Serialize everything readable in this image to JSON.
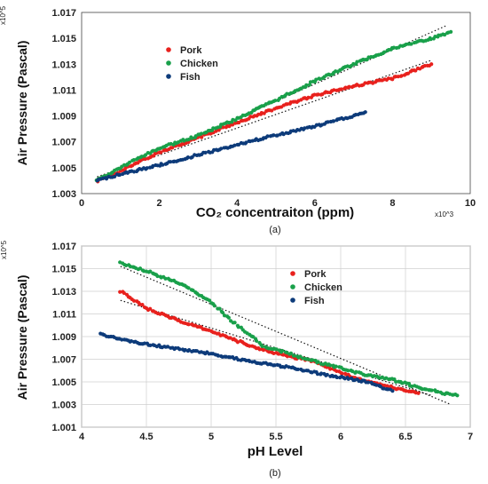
{
  "chart_data": [
    {
      "type": "scatter",
      "caption": "(a)",
      "xlabel": "CO₂ concentraiton (ppm)",
      "ylabel": "Air Pressure (Pascal)",
      "x_multiplier": "x10^3",
      "y_multiplier": "x10^5",
      "xlim": [
        0,
        10
      ],
      "ylim": [
        1.003,
        1.017
      ],
      "x_ticks": [
        "0",
        "2",
        "4",
        "6",
        "8",
        "10"
      ],
      "y_ticks": [
        "1.003",
        "1.005",
        "1.007",
        "1.009",
        "1.011",
        "1.013",
        "1.015",
        "1.017"
      ],
      "grid": false,
      "legend": "upper-left inside",
      "series": [
        {
          "name": "Pork",
          "color": "#e8211d",
          "points": [
            [
              0.4,
              1.004
            ],
            [
              1,
              1.0047
            ],
            [
              1.5,
              1.0055
            ],
            [
              2,
              1.0062
            ],
            [
              3,
              1.0073
            ],
            [
              4,
              1.0085
            ],
            [
              5,
              1.0096
            ],
            [
              6,
              1.0106
            ],
            [
              7,
              1.0113
            ],
            [
              8,
              1.0119
            ],
            [
              9,
              1.013
            ]
          ]
        },
        {
          "name": "Chicken",
          "color": "#19a04a",
          "points": [
            [
              0.4,
              1.004
            ],
            [
              1,
              1.005
            ],
            [
              1.5,
              1.0058
            ],
            [
              2,
              1.0065
            ],
            [
              3,
              1.0075
            ],
            [
              4,
              1.0088
            ],
            [
              5,
              1.0102
            ],
            [
              6,
              1.0117
            ],
            [
              7,
              1.013
            ],
            [
              8,
              1.0142
            ],
            [
              9,
              1.015
            ],
            [
              9.5,
              1.0155
            ]
          ]
        },
        {
          "name": "Fish",
          "color": "#0d3b7a",
          "points": [
            [
              0.4,
              1.004
            ],
            [
              1,
              1.0045
            ],
            [
              2,
              1.0052
            ],
            [
              3,
              1.006
            ],
            [
              4,
              1.0068
            ],
            [
              5,
              1.0075
            ],
            [
              6,
              1.0082
            ],
            [
              7,
              1.009
            ],
            [
              7.3,
              1.0093
            ]
          ]
        }
      ],
      "trendlines": [
        {
          "from": [
            0.4,
            1.004
          ],
          "to": [
            9.4,
            1.016
          ]
        },
        {
          "from": [
            0.4,
            1.0043
          ],
          "to": [
            9.0,
            1.0133
          ]
        }
      ]
    },
    {
      "type": "scatter",
      "caption": "(b)",
      "xlabel": "pH Level",
      "ylabel": "Air Pressure (Pascal)",
      "y_multiplier": "x10^5",
      "xlim": [
        4,
        7
      ],
      "ylim": [
        1.001,
        1.017
      ],
      "x_ticks": [
        "4",
        "4.5",
        "5",
        "5.5",
        "6",
        "6.5",
        "7"
      ],
      "y_ticks": [
        "1.001",
        "1.003",
        "1.005",
        "1.007",
        "1.009",
        "1.011",
        "1.013",
        "1.015",
        "1.017"
      ],
      "grid": true,
      "legend": "upper-right inside",
      "series": [
        {
          "name": "Pork",
          "color": "#e8211d",
          "points": [
            [
              4.3,
              1.013
            ],
            [
              4.5,
              1.0115
            ],
            [
              4.8,
              1.0102
            ],
            [
              5,
              1.0095
            ],
            [
              5.3,
              1.0082
            ],
            [
              5.5,
              1.0075
            ],
            [
              5.8,
              1.0068
            ],
            [
              6,
              1.0058
            ],
            [
              6.2,
              1.005
            ],
            [
              6.4,
              1.0045
            ],
            [
              6.6,
              1.004
            ]
          ]
        },
        {
          "name": "Chicken",
          "color": "#19a04a",
          "points": [
            [
              4.3,
              1.0155
            ],
            [
              4.5,
              1.0148
            ],
            [
              4.8,
              1.0135
            ],
            [
              5,
              1.012
            ],
            [
              5.2,
              1.01
            ],
            [
              5.4,
              1.0082
            ],
            [
              5.6,
              1.0075
            ],
            [
              5.8,
              1.0068
            ],
            [
              6,
              1.0062
            ],
            [
              6.2,
              1.0056
            ],
            [
              6.4,
              1.0052
            ],
            [
              6.6,
              1.0045
            ],
            [
              6.8,
              1.004
            ],
            [
              6.9,
              1.0038
            ]
          ]
        },
        {
          "name": "Fish",
          "color": "#0d3b7a",
          "points": [
            [
              4.15,
              1.0092
            ],
            [
              4.4,
              1.0085
            ],
            [
              4.7,
              1.008
            ],
            [
              5,
              1.0075
            ],
            [
              5.3,
              1.0068
            ],
            [
              5.6,
              1.0063
            ],
            [
              5.9,
              1.0056
            ],
            [
              6.2,
              1.005
            ],
            [
              6.4,
              1.0042
            ]
          ]
        }
      ],
      "trendlines": [
        {
          "from": [
            4.3,
            1.0152
          ],
          "to": [
            6.85,
            1.003
          ]
        },
        {
          "from": [
            4.3,
            1.0122
          ],
          "to": [
            6.7,
            1.0038
          ]
        }
      ]
    }
  ]
}
